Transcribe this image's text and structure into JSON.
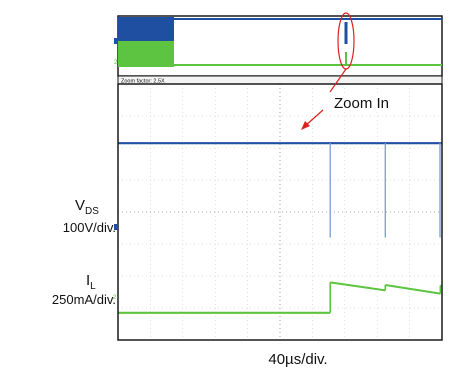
{
  "chart_data": {
    "type": "line",
    "title": "",
    "xlabel": "40µs/div.",
    "zoom_factor_text": "Zoom factor: 2.5X",
    "annotation": "Zoom In",
    "x_divisions": 10,
    "y_divisions": 8,
    "series": [
      {
        "name_main": "V",
        "name_sub": "DS",
        "scale": "100V/div.",
        "color": "#1f4fa0",
        "baseline_div": 6.15,
        "spike_times_div": [
          6.55,
          8.25,
          9.95
        ],
        "spike_bottom_div": 3.2
      },
      {
        "name_main": "I",
        "name_sub": "L",
        "scale": "250mA/div.",
        "color": "#5cc440",
        "low_level_div": 0.85,
        "step_time_div": 6.55,
        "ramp_segments": [
          {
            "start_div": 6.55,
            "end_div": 8.25,
            "from_level_div": 1.8,
            "to_level_div": 1.55
          },
          {
            "start_div": 8.25,
            "end_div": 9.95,
            "from_level_div": 1.72,
            "to_level_div": 1.45
          },
          {
            "start_div": 9.95,
            "end_div": 11.0,
            "from_level_div": 1.7,
            "to_level_div": 1.5
          }
        ]
      }
    ],
    "grid": true
  }
}
